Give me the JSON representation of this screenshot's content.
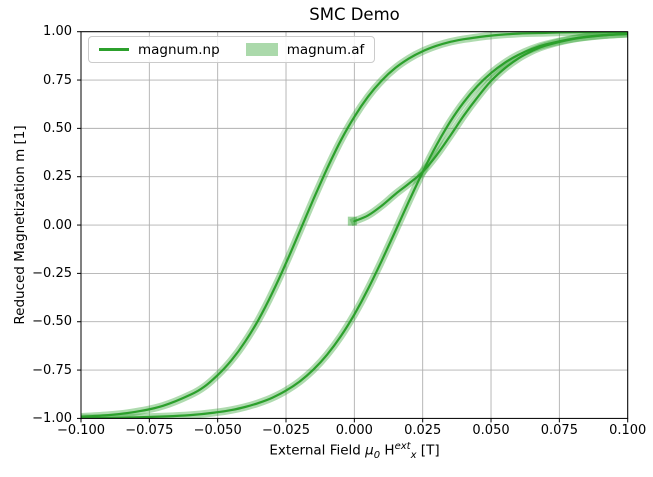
{
  "chart_data": {
    "type": "line",
    "title": "SMC Demo",
    "ylabel": "Reduced Magnetization m [1]",
    "xlabel_parts": {
      "pre": "External Field ",
      "mu": "μ",
      "mu_sub": "0",
      "h": " H",
      "h_sup": "ext",
      "h_sub": "x",
      "post": " [T]"
    },
    "xlim": [
      -0.1,
      0.1
    ],
    "ylim": [
      -1.0,
      1.0
    ],
    "grid": true,
    "style": {
      "grid_color": "#b0b0b0",
      "spine_color": "#000000",
      "background": "#ffffff"
    },
    "x_ticks": {
      "values": [
        -0.1,
        -0.075,
        -0.05,
        -0.025,
        0.0,
        0.025,
        0.05,
        0.075,
        0.1
      ],
      "labels": [
        "−0.100",
        "−0.075",
        "−0.050",
        "−0.025",
        "0.000",
        "0.025",
        "0.050",
        "0.075",
        "0.100"
      ]
    },
    "y_ticks": {
      "values": [
        -1.0,
        -0.75,
        -0.5,
        -0.25,
        0.0,
        0.25,
        0.5,
        0.75,
        1.0
      ],
      "labels": [
        "−1.00",
        "−0.75",
        "−0.50",
        "−0.25",
        "0.00",
        "0.25",
        "0.50",
        "0.75",
        "1.00"
      ]
    },
    "legend": {
      "location": "upper left",
      "ncols": 2,
      "entries": [
        {
          "label": "magnum.np",
          "swatch": "line",
          "color": "#2ca02c",
          "alpha": 1.0
        },
        {
          "label": "magnum.af",
          "swatch": "patch",
          "color": "#2ca02c",
          "alpha": 0.4
        }
      ]
    },
    "series": [
      {
        "name": "magnum.af",
        "style": "band",
        "color": "#2ca02c",
        "opacity": 0.38,
        "line_width": 7.5,
        "z": 1
      },
      {
        "name": "magnum.np",
        "style": "line",
        "color": "#2ca02c",
        "opacity": 1.0,
        "line_width": 2.2,
        "z": 2
      }
    ],
    "start_marker": {
      "H": 0.0,
      "m": 0.02,
      "size": 9
    },
    "curves": {
      "descending_branch": [
        [
          -0.1,
          -0.991
        ],
        [
          -0.09,
          -0.983
        ],
        [
          -0.08,
          -0.966
        ],
        [
          -0.07,
          -0.935
        ],
        [
          -0.06,
          -0.878
        ],
        [
          -0.055,
          -0.837
        ],
        [
          -0.05,
          -0.776
        ],
        [
          -0.045,
          -0.7
        ],
        [
          -0.04,
          -0.604
        ],
        [
          -0.035,
          -0.488
        ],
        [
          -0.03,
          -0.351
        ],
        [
          -0.025,
          -0.197
        ],
        [
          -0.02,
          -0.033
        ],
        [
          -0.015,
          0.132
        ],
        [
          -0.01,
          0.291
        ],
        [
          -0.005,
          0.436
        ],
        [
          0.0,
          0.56
        ],
        [
          0.005,
          0.664
        ],
        [
          0.01,
          0.747
        ],
        [
          0.015,
          0.813
        ],
        [
          0.02,
          0.862
        ],
        [
          0.025,
          0.899
        ],
        [
          0.03,
          0.927
        ],
        [
          0.035,
          0.947
        ],
        [
          0.04,
          0.961
        ],
        [
          0.05,
          0.98
        ],
        [
          0.06,
          0.99
        ],
        [
          0.07,
          0.994
        ],
        [
          0.08,
          0.997
        ],
        [
          0.1,
          0.999
        ]
      ],
      "ascending_branch": [
        [
          -0.1,
          -0.999
        ],
        [
          -0.08,
          -0.995
        ],
        [
          -0.06,
          -0.983
        ],
        [
          -0.05,
          -0.968
        ],
        [
          -0.045,
          -0.957
        ],
        [
          -0.04,
          -0.941
        ],
        [
          -0.035,
          -0.92
        ],
        [
          -0.03,
          -0.893
        ],
        [
          -0.025,
          -0.856
        ],
        [
          -0.02,
          -0.809
        ],
        [
          -0.015,
          -0.748
        ],
        [
          -0.01,
          -0.671
        ],
        [
          -0.005,
          -0.576
        ],
        [
          0.0,
          -0.462
        ],
        [
          0.005,
          -0.331
        ],
        [
          0.01,
          -0.185
        ],
        [
          0.015,
          -0.031
        ],
        [
          0.02,
          0.124
        ],
        [
          0.025,
          0.274
        ],
        [
          0.03,
          0.412
        ],
        [
          0.035,
          0.533
        ],
        [
          0.04,
          0.635
        ],
        [
          0.045,
          0.719
        ],
        [
          0.05,
          0.786
        ],
        [
          0.055,
          0.839
        ],
        [
          0.06,
          0.88
        ],
        [
          0.065,
          0.911
        ],
        [
          0.07,
          0.934
        ],
        [
          0.08,
          0.964
        ],
        [
          0.09,
          0.981
        ],
        [
          0.1,
          0.989
        ]
      ],
      "virgin_curve": [
        [
          0.0,
          0.02
        ],
        [
          0.005,
          0.05
        ],
        [
          0.01,
          0.1
        ],
        [
          0.015,
          0.16
        ],
        [
          0.02,
          0.215
        ],
        [
          0.025,
          0.275
        ],
        [
          0.03,
          0.36
        ],
        [
          0.035,
          0.46
        ],
        [
          0.04,
          0.565
        ],
        [
          0.045,
          0.66
        ],
        [
          0.05,
          0.745
        ],
        [
          0.055,
          0.81
        ],
        [
          0.06,
          0.862
        ],
        [
          0.065,
          0.9
        ],
        [
          0.07,
          0.928
        ],
        [
          0.08,
          0.962
        ],
        [
          0.09,
          0.98
        ],
        [
          0.1,
          0.989
        ]
      ]
    }
  }
}
